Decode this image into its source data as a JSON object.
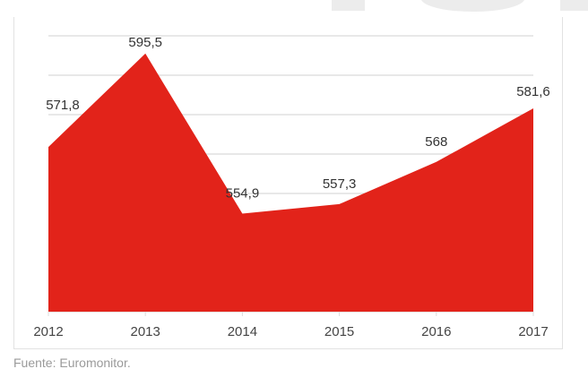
{
  "chart_data": {
    "type": "area",
    "categories": [
      "2012",
      "2013",
      "2014",
      "2015",
      "2016",
      "2017"
    ],
    "values": [
      571.8,
      595.5,
      554.9,
      557.3,
      568,
      581.6
    ],
    "data_labels": [
      "571,8",
      "595,5",
      "554,9",
      "557,3",
      "568",
      "581,6"
    ],
    "title": "",
    "xlabel": "",
    "ylabel": "",
    "ylim": [
      530,
      600
    ],
    "grid": true,
    "color": "#e2231a"
  },
  "source": "Fuente: Euromonitor."
}
